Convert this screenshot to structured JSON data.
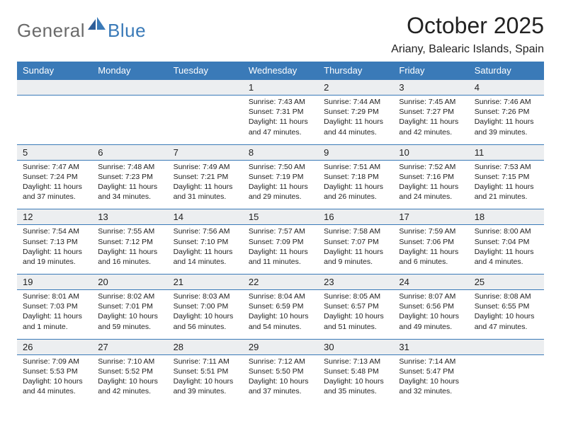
{
  "brand": {
    "part1": "General",
    "part2": "Blue"
  },
  "title": "October 2025",
  "location": "Ariany, Balearic Islands, Spain",
  "colors": {
    "header_bg": "#3a7ab8",
    "header_text": "#ffffff",
    "daynum_bg": "#eceef0",
    "border": "#3a7ab8",
    "text": "#222222",
    "logo_gray": "#6a6a6a",
    "logo_blue": "#3a7ab8"
  },
  "weekdays": [
    "Sunday",
    "Monday",
    "Tuesday",
    "Wednesday",
    "Thursday",
    "Friday",
    "Saturday"
  ],
  "weeks": [
    [
      {
        "day": "",
        "sunrise": "",
        "sunset": "",
        "daylight": ""
      },
      {
        "day": "",
        "sunrise": "",
        "sunset": "",
        "daylight": ""
      },
      {
        "day": "",
        "sunrise": "",
        "sunset": "",
        "daylight": ""
      },
      {
        "day": "1",
        "sunrise": "Sunrise: 7:43 AM",
        "sunset": "Sunset: 7:31 PM",
        "daylight": "Daylight: 11 hours and 47 minutes."
      },
      {
        "day": "2",
        "sunrise": "Sunrise: 7:44 AM",
        "sunset": "Sunset: 7:29 PM",
        "daylight": "Daylight: 11 hours and 44 minutes."
      },
      {
        "day": "3",
        "sunrise": "Sunrise: 7:45 AM",
        "sunset": "Sunset: 7:27 PM",
        "daylight": "Daylight: 11 hours and 42 minutes."
      },
      {
        "day": "4",
        "sunrise": "Sunrise: 7:46 AM",
        "sunset": "Sunset: 7:26 PM",
        "daylight": "Daylight: 11 hours and 39 minutes."
      }
    ],
    [
      {
        "day": "5",
        "sunrise": "Sunrise: 7:47 AM",
        "sunset": "Sunset: 7:24 PM",
        "daylight": "Daylight: 11 hours and 37 minutes."
      },
      {
        "day": "6",
        "sunrise": "Sunrise: 7:48 AM",
        "sunset": "Sunset: 7:23 PM",
        "daylight": "Daylight: 11 hours and 34 minutes."
      },
      {
        "day": "7",
        "sunrise": "Sunrise: 7:49 AM",
        "sunset": "Sunset: 7:21 PM",
        "daylight": "Daylight: 11 hours and 31 minutes."
      },
      {
        "day": "8",
        "sunrise": "Sunrise: 7:50 AM",
        "sunset": "Sunset: 7:19 PM",
        "daylight": "Daylight: 11 hours and 29 minutes."
      },
      {
        "day": "9",
        "sunrise": "Sunrise: 7:51 AM",
        "sunset": "Sunset: 7:18 PM",
        "daylight": "Daylight: 11 hours and 26 minutes."
      },
      {
        "day": "10",
        "sunrise": "Sunrise: 7:52 AM",
        "sunset": "Sunset: 7:16 PM",
        "daylight": "Daylight: 11 hours and 24 minutes."
      },
      {
        "day": "11",
        "sunrise": "Sunrise: 7:53 AM",
        "sunset": "Sunset: 7:15 PM",
        "daylight": "Daylight: 11 hours and 21 minutes."
      }
    ],
    [
      {
        "day": "12",
        "sunrise": "Sunrise: 7:54 AM",
        "sunset": "Sunset: 7:13 PM",
        "daylight": "Daylight: 11 hours and 19 minutes."
      },
      {
        "day": "13",
        "sunrise": "Sunrise: 7:55 AM",
        "sunset": "Sunset: 7:12 PM",
        "daylight": "Daylight: 11 hours and 16 minutes."
      },
      {
        "day": "14",
        "sunrise": "Sunrise: 7:56 AM",
        "sunset": "Sunset: 7:10 PM",
        "daylight": "Daylight: 11 hours and 14 minutes."
      },
      {
        "day": "15",
        "sunrise": "Sunrise: 7:57 AM",
        "sunset": "Sunset: 7:09 PM",
        "daylight": "Daylight: 11 hours and 11 minutes."
      },
      {
        "day": "16",
        "sunrise": "Sunrise: 7:58 AM",
        "sunset": "Sunset: 7:07 PM",
        "daylight": "Daylight: 11 hours and 9 minutes."
      },
      {
        "day": "17",
        "sunrise": "Sunrise: 7:59 AM",
        "sunset": "Sunset: 7:06 PM",
        "daylight": "Daylight: 11 hours and 6 minutes."
      },
      {
        "day": "18",
        "sunrise": "Sunrise: 8:00 AM",
        "sunset": "Sunset: 7:04 PM",
        "daylight": "Daylight: 11 hours and 4 minutes."
      }
    ],
    [
      {
        "day": "19",
        "sunrise": "Sunrise: 8:01 AM",
        "sunset": "Sunset: 7:03 PM",
        "daylight": "Daylight: 11 hours and 1 minute."
      },
      {
        "day": "20",
        "sunrise": "Sunrise: 8:02 AM",
        "sunset": "Sunset: 7:01 PM",
        "daylight": "Daylight: 10 hours and 59 minutes."
      },
      {
        "day": "21",
        "sunrise": "Sunrise: 8:03 AM",
        "sunset": "Sunset: 7:00 PM",
        "daylight": "Daylight: 10 hours and 56 minutes."
      },
      {
        "day": "22",
        "sunrise": "Sunrise: 8:04 AM",
        "sunset": "Sunset: 6:59 PM",
        "daylight": "Daylight: 10 hours and 54 minutes."
      },
      {
        "day": "23",
        "sunrise": "Sunrise: 8:05 AM",
        "sunset": "Sunset: 6:57 PM",
        "daylight": "Daylight: 10 hours and 51 minutes."
      },
      {
        "day": "24",
        "sunrise": "Sunrise: 8:07 AM",
        "sunset": "Sunset: 6:56 PM",
        "daylight": "Daylight: 10 hours and 49 minutes."
      },
      {
        "day": "25",
        "sunrise": "Sunrise: 8:08 AM",
        "sunset": "Sunset: 6:55 PM",
        "daylight": "Daylight: 10 hours and 47 minutes."
      }
    ],
    [
      {
        "day": "26",
        "sunrise": "Sunrise: 7:09 AM",
        "sunset": "Sunset: 5:53 PM",
        "daylight": "Daylight: 10 hours and 44 minutes."
      },
      {
        "day": "27",
        "sunrise": "Sunrise: 7:10 AM",
        "sunset": "Sunset: 5:52 PM",
        "daylight": "Daylight: 10 hours and 42 minutes."
      },
      {
        "day": "28",
        "sunrise": "Sunrise: 7:11 AM",
        "sunset": "Sunset: 5:51 PM",
        "daylight": "Daylight: 10 hours and 39 minutes."
      },
      {
        "day": "29",
        "sunrise": "Sunrise: 7:12 AM",
        "sunset": "Sunset: 5:50 PM",
        "daylight": "Daylight: 10 hours and 37 minutes."
      },
      {
        "day": "30",
        "sunrise": "Sunrise: 7:13 AM",
        "sunset": "Sunset: 5:48 PM",
        "daylight": "Daylight: 10 hours and 35 minutes."
      },
      {
        "day": "31",
        "sunrise": "Sunrise: 7:14 AM",
        "sunset": "Sunset: 5:47 PM",
        "daylight": "Daylight: 10 hours and 32 minutes."
      },
      {
        "day": "",
        "sunrise": "",
        "sunset": "",
        "daylight": ""
      }
    ]
  ]
}
